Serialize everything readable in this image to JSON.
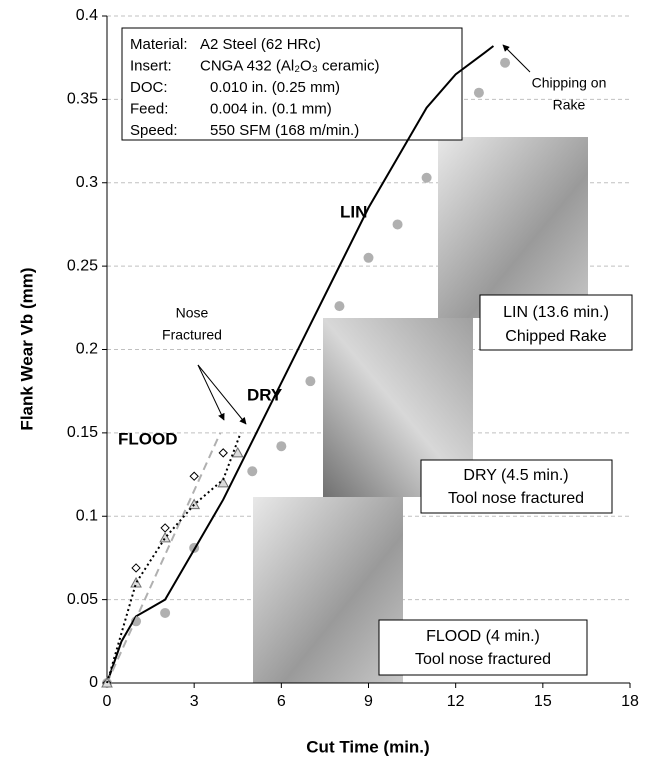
{
  "chart_data": {
    "type": "scatter",
    "x_label": "Cut Time (min.)",
    "y_label": "Flank Wear Vb (mm)",
    "xlim": [
      0,
      18
    ],
    "xticks": [
      0,
      3,
      6,
      9,
      12,
      15,
      18
    ],
    "ylim": [
      0,
      0.4
    ],
    "yticks": [
      0,
      0.05,
      0.1,
      0.15,
      0.2,
      0.25,
      0.3,
      0.35,
      0.4
    ],
    "grid": true,
    "series": [
      {
        "marker": "dot",
        "color": "#b0b0b0",
        "x": [
          0,
          1,
          2,
          3,
          5,
          6,
          7,
          8,
          9,
          10,
          11,
          12.8,
          13.7
        ],
        "values": [
          0,
          0.037,
          0.042,
          0.081,
          0.127,
          0.142,
          0.181,
          0.226,
          0.255,
          0.275,
          0.303,
          0.354,
          0.372
        ]
      },
      {
        "marker": "line",
        "color": "#000000",
        "dash": "none",
        "x": [
          0,
          0.5,
          1,
          1.5,
          2,
          3,
          4,
          5,
          6,
          7,
          8,
          9,
          10,
          11,
          12,
          13,
          13.3
        ],
        "values": [
          0,
          0.025,
          0.04,
          0.045,
          0.05,
          0.08,
          0.11,
          0.145,
          0.18,
          0.215,
          0.25,
          0.285,
          0.315,
          0.345,
          0.365,
          0.378,
          0.382
        ]
      },
      {
        "marker": "diamond",
        "color": "#000000",
        "x": [
          0,
          1,
          2,
          3,
          4
        ],
        "values": [
          0,
          0.069,
          0.093,
          0.124,
          0.138
        ]
      },
      {
        "marker": "line",
        "color": "#b0b0b0",
        "dash": "8 5",
        "x": [
          0,
          3.9
        ],
        "values": [
          0,
          0.15
        ]
      },
      {
        "marker": "triangle",
        "color": "#707070",
        "x": [
          0,
          1,
          2,
          3,
          4,
          4.5
        ],
        "values": [
          0,
          0.06,
          0.087,
          0.107,
          0.12,
          0.138
        ]
      },
      {
        "marker": "line",
        "color": "#000000",
        "dash": "2 3",
        "x": [
          0,
          1,
          2,
          3,
          4,
          4.6
        ],
        "values": [
          0,
          0.06,
          0.087,
          0.107,
          0.122,
          0.15
        ]
      }
    ],
    "info": [
      [
        "Material:",
        "A2 Steel (62 HRc)"
      ],
      [
        "Insert:",
        "CNGA 432 (Al₂O₃ ceramic)"
      ],
      [
        "DOC:",
        "0.010 in. (0.25 mm)"
      ],
      [
        "Feed:",
        "0.004 in. (0.1 mm)"
      ],
      [
        "Speed:",
        "550 SFM (168 m/min.)"
      ]
    ],
    "annotations": {
      "lin": "LIN",
      "dry": "DRY",
      "flood": "FLOOD",
      "nose": [
        "Nose",
        "Fractured"
      ],
      "chipping": [
        "Chipping on",
        "Rake"
      ]
    },
    "captions": {
      "lin": [
        "LIN (13.6 min.)",
        "Chipped Rake"
      ],
      "dry": [
        "DRY (4.5 min.)",
        "Tool nose fractured"
      ],
      "flood": [
        "FLOOD (4 min.)",
        "Tool nose fractured"
      ]
    }
  }
}
